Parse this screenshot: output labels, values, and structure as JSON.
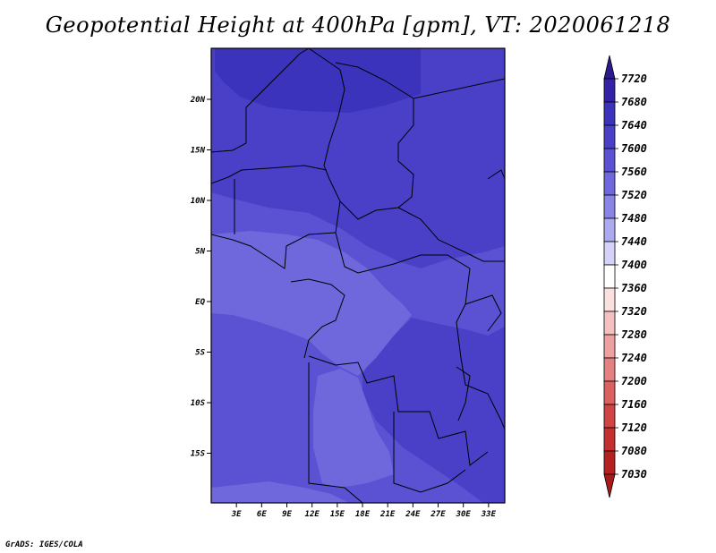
{
  "title": "Geopotential Height at 400hPa [gpm], VT: 2020061218",
  "footer": "GrADS: IGES/COLA",
  "map": {
    "lat_labels": [
      "20N",
      "15N",
      "10N",
      "5N",
      "EQ",
      "5S",
      "10S",
      "15S"
    ],
    "lon_labels": [
      "3E",
      "6E",
      "9E",
      "12E",
      "15E",
      "18E",
      "21E",
      "24E",
      "27E",
      "30E",
      "33E"
    ],
    "lat_values": [
      20,
      15,
      10,
      5,
      0,
      -5,
      -10,
      -15
    ],
    "lon_values": [
      3,
      6,
      9,
      12,
      15,
      18,
      21,
      24,
      27,
      30,
      33
    ]
  },
  "colorbar": {
    "levels": [
      "7720",
      "7680",
      "7640",
      "7600",
      "7560",
      "7520",
      "7480",
      "7440",
      "7400",
      "7360",
      "7320",
      "7280",
      "7240",
      "7200",
      "7160",
      "7120",
      "7080",
      "7030"
    ],
    "colors": [
      "#2b1a8f",
      "#3322a6",
      "#3b33bb",
      "#4a40c8",
      "#5a52d3",
      "#6f68dd",
      "#8a84e6",
      "#aeaaf0",
      "#d4d2f7",
      "#ffffff",
      "#fbe0e0",
      "#f5c0c0",
      "#eda0a0",
      "#e48080",
      "#db6060",
      "#d04444",
      "#c43030",
      "#b52020"
    ],
    "top_color": "#2b1a8f",
    "bottom_color": "#a81a1a"
  }
}
